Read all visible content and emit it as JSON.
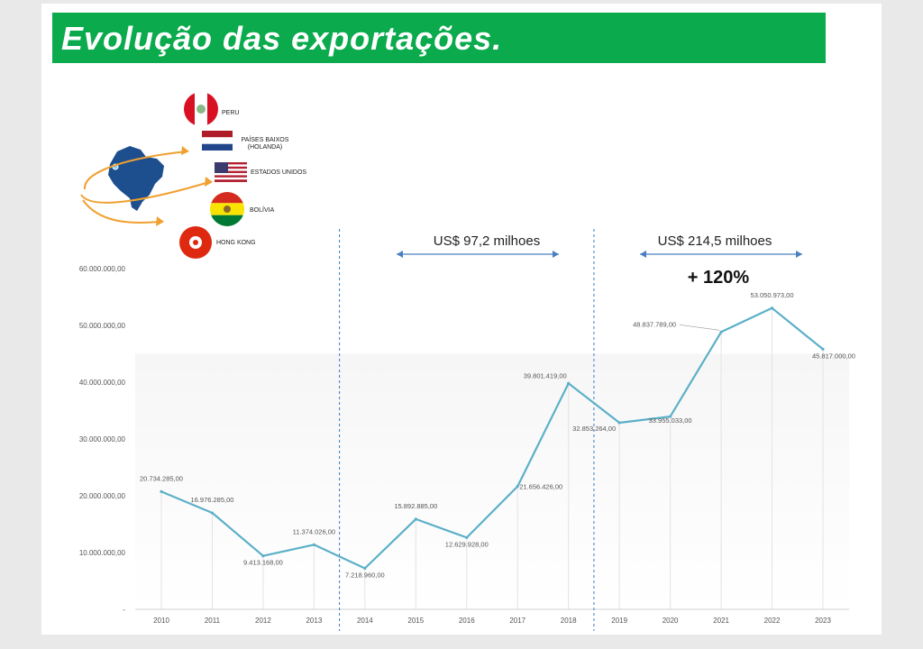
{
  "title": "Evolução das exportações.",
  "countries": [
    {
      "name": "PERU",
      "icon": "peru-flag-icon"
    },
    {
      "name": "PAÍSES BAIXOS\n(HOLANDA)",
      "icon": "netherlands-flag-icon"
    },
    {
      "name": "ESTADOS UNIDOS",
      "icon": "usa-flag-icon"
    },
    {
      "name": "BOLÍVIA",
      "icon": "bolivia-flag-icon"
    },
    {
      "name": "HONG KONG",
      "icon": "hong-kong-flag-icon"
    }
  ],
  "periods": [
    {
      "label": "US$ 97,2 milhoes",
      "growth": ""
    },
    {
      "label": "US$ 214,5 milhoes",
      "growth": "+ 120%"
    }
  ],
  "colors": {
    "title_bar": "#0aaa4d",
    "line": "#5bb0c8",
    "divider": "#3a78c8",
    "arrow": "#4a7fc0"
  },
  "chart_data": {
    "type": "line",
    "title": "",
    "xlabel": "",
    "ylabel": "",
    "ylim": [
      0,
      60000000
    ],
    "y_ticks": [
      "-",
      "10.000.000,00",
      "20.000.000,00",
      "30.000.000,00",
      "40.000.000,00",
      "50.000.000,00",
      "60.000.000,00"
    ],
    "categories": [
      "2010",
      "2011",
      "2012",
      "2013",
      "2014",
      "2015",
      "2016",
      "2017",
      "2018",
      "2019",
      "2020",
      "2021",
      "2022",
      "2023"
    ],
    "series": [
      {
        "values": [
          20734285,
          16976285,
          9413168,
          11374026,
          7218960,
          15892885,
          12629928,
          21656426,
          39801419,
          32853264,
          33955033,
          48837789,
          53050973,
          45817000
        ],
        "labels": [
          "20.734.285,00",
          "16.976.285,00",
          "9.413.168,00",
          "11.374.026,00",
          "7.218.960,00",
          "15.892.885,00",
          "12.629.928,00",
          "21.656.426,00",
          "39.801.419,00",
          "32.853.264,00",
          "33.955.033,00",
          "48.837.789,00",
          "53.050.973,00",
          "45.817.000,00"
        ]
      }
    ],
    "dividers_between": [
      [
        "2013",
        "2014"
      ],
      [
        "2018",
        "2019"
      ]
    ],
    "grid": false,
    "legend": "none"
  }
}
